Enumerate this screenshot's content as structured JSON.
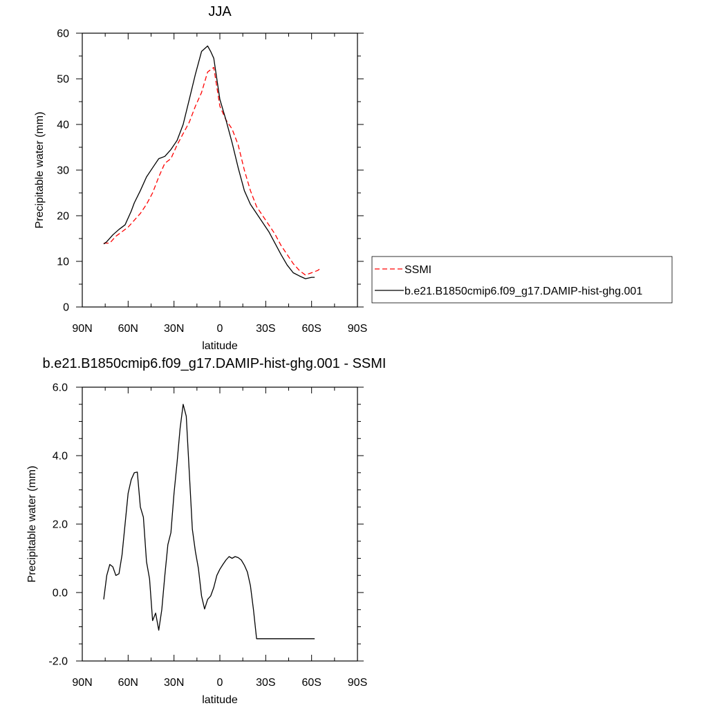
{
  "chart_data": [
    {
      "type": "line",
      "title": "JJA",
      "xlabel": "latitude",
      "ylabel": "Precipitable water (mm)",
      "xlim": [
        90,
        -90
      ],
      "ylim": [
        0,
        60
      ],
      "x_ticks": [
        90,
        60,
        30,
        0,
        -30,
        -60,
        -90
      ],
      "x_tick_labels": [
        "90N",
        "60N",
        "30N",
        "0",
        "30S",
        "60S",
        "90S"
      ],
      "y_ticks": [
        0,
        10,
        20,
        30,
        40,
        50,
        60
      ],
      "y_tick_labels": [
        "0",
        "10",
        "20",
        "30",
        "40",
        "50",
        "60"
      ],
      "legend_position": "right",
      "series": [
        {
          "name": "SSMI",
          "color": "#ff0000",
          "style": "dashed",
          "x": [
            76,
            72,
            68,
            64,
            60,
            56,
            52,
            48,
            44,
            40,
            36,
            32,
            28,
            24,
            20,
            16,
            12,
            8,
            4,
            0,
            -4,
            -8,
            -12,
            -16,
            -20,
            -24,
            -28,
            -32,
            -36,
            -40,
            -44,
            -48,
            -52,
            -56,
            -60,
            -64,
            -66
          ],
          "y": [
            14,
            14,
            15.5,
            16.5,
            17.5,
            19,
            20.5,
            22.5,
            25,
            28.5,
            31.5,
            32.5,
            35.5,
            38,
            40.5,
            44,
            47,
            51.5,
            52.5,
            44,
            41,
            39,
            35.5,
            30,
            25.5,
            22,
            20,
            18,
            16,
            13.5,
            11.5,
            9.5,
            8,
            7,
            7.5,
            8,
            8.5
          ]
        },
        {
          "name": "b.e21.B1850cmip6.f09_g17.DAMIP-hist-ghg.001",
          "color": "#000000",
          "style": "solid",
          "x": [
            76,
            74,
            70,
            66,
            62,
            58,
            56,
            52,
            48,
            44,
            40,
            36,
            32,
            28,
            24,
            20,
            16,
            12,
            8,
            6,
            4,
            2,
            0,
            -4,
            -8,
            -12,
            -16,
            -20,
            -24,
            -28,
            -32,
            -36,
            -40,
            -44,
            -48,
            -52,
            -56,
            -60,
            -62
          ],
          "y": [
            13.8,
            14.3,
            15.8,
            17,
            18,
            21,
            22.8,
            25.5,
            28.5,
            30.5,
            32.5,
            33,
            34.5,
            36.5,
            40,
            45.5,
            51,
            56,
            57.2,
            56,
            54.5,
            50,
            45.5,
            41,
            36,
            30.5,
            25.5,
            22.5,
            20.5,
            18.5,
            16.5,
            14,
            11.5,
            9.2,
            7.5,
            6.8,
            6.2,
            6.5,
            6.5
          ]
        }
      ]
    },
    {
      "type": "line",
      "title": "b.e21.B1850cmip6.f09_g17.DAMIP-hist-ghg.001 - SSMI",
      "xlabel": "latitude",
      "ylabel": "Precipitable water (mm)",
      "xlim": [
        90,
        -90
      ],
      "ylim": [
        -2,
        6
      ],
      "x_ticks": [
        90,
        60,
        30,
        0,
        -30,
        -60,
        -90
      ],
      "x_tick_labels": [
        "90N",
        "60N",
        "30N",
        "0",
        "30S",
        "60S",
        "90S"
      ],
      "y_ticks": [
        -2,
        0,
        2,
        4,
        6
      ],
      "y_tick_labels": [
        "-2.0",
        "0.0",
        "2.0",
        "4.0",
        "6.0"
      ],
      "series": [
        {
          "color": "#000000",
          "style": "solid",
          "x": [
            76,
            74,
            72,
            70,
            68,
            66,
            64,
            62,
            60,
            58,
            56,
            54,
            52,
            50,
            48,
            46,
            44,
            42,
            40,
            38,
            36,
            34,
            32,
            30,
            28,
            26,
            24,
            22,
            20,
            18,
            16,
            14,
            12,
            10,
            8,
            6,
            4,
            2,
            0,
            -2,
            -4,
            -6,
            -8,
            -10,
            -12,
            -14,
            -16,
            -18,
            -20,
            -22,
            -24,
            -26,
            -28,
            -30,
            -32,
            -34,
            -36,
            -38,
            -40,
            -42,
            -44,
            -46,
            -48,
            -50,
            -52,
            -54,
            -56,
            -58,
            -60,
            -62
          ],
          "y": [
            -0.2,
            0.5,
            0.82,
            0.75,
            0.5,
            0.55,
            1.1,
            2.0,
            2.9,
            3.3,
            3.5,
            3.52,
            2.5,
            2.2,
            0.9,
            0.4,
            -0.82,
            -0.6,
            -1.1,
            -0.5,
            0.5,
            1.4,
            1.75,
            2.9,
            3.8,
            4.8,
            5.5,
            5.15,
            3.5,
            1.85,
            1.2,
            0.7,
            -0.1,
            -0.48,
            -0.2,
            -0.1,
            0.15,
            0.5,
            0.68,
            0.82,
            0.95,
            1.05,
            1.0,
            1.05,
            1.02,
            0.95,
            0.8,
            0.6,
            0.2,
            -0.5,
            -1.35,
            -1.35,
            -1.35,
            -1.35,
            -1.35,
            -1.35,
            -1.35,
            -1.35,
            -1.35,
            -1.35,
            -1.35,
            -1.35,
            -1.35,
            -1.35,
            -1.35,
            -1.35,
            -1.35,
            -1.35,
            -1.35,
            -1.35
          ]
        }
      ]
    }
  ]
}
